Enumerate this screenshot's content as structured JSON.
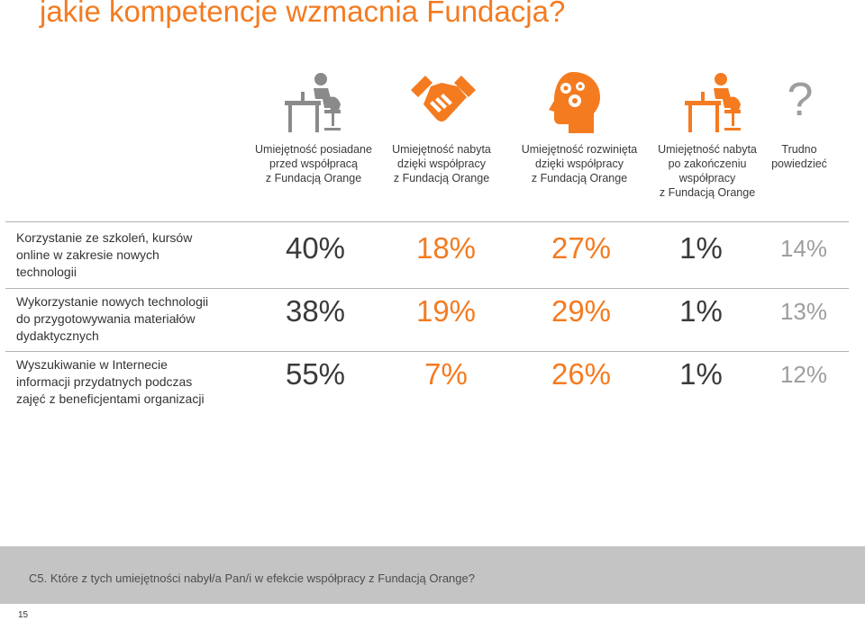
{
  "title": "jakie kompetencje wzmacnia Fundacja?",
  "colors": {
    "accent": "#f47b20",
    "gray": "#9e9e9e",
    "text": "#333333"
  },
  "columns": [
    {
      "icon": "person-at-desk-icon",
      "header": [
        "Umiejętność posiadane",
        "przed współpracą",
        "z Fundacją Orange"
      ],
      "color": "#3a3a3a"
    },
    {
      "icon": "handshake-icon",
      "header": [
        "Umiejętność nabyta",
        "dzięki współpracy",
        "z Fundacją Orange"
      ],
      "color": "#f47b20"
    },
    {
      "icon": "head-gears-icon",
      "header": [
        "Umiejętność rozwinięta",
        "dzięki współpracy",
        "z Fundacją Orange"
      ],
      "color": "#f47b20"
    },
    {
      "icon": "person-at-desk-icon",
      "header": [
        "Umiejętność nabyta",
        "po zakończeniu",
        "współpracy",
        "z Fundacją Orange"
      ],
      "color": "#3a3a3a"
    },
    {
      "icon": "question-mark-icon",
      "header": [
        "Trudno",
        "powiedzieć"
      ],
      "color": "#9e9e9e"
    }
  ],
  "rows": [
    {
      "label": [
        "Korzystanie ze szkoleń, kursów",
        "online  w zakresie nowych",
        "technologii"
      ],
      "values": [
        "40%",
        "18%",
        "27%",
        "1%",
        "14%"
      ]
    },
    {
      "label": [
        "Wykorzystanie nowych technologii",
        "do przygotowywania materiałów",
        "dydaktycznych"
      ],
      "values": [
        "38%",
        "19%",
        "29%",
        "1%",
        "13%"
      ]
    },
    {
      "label": [
        "Wyszukiwanie w Internecie",
        "informacji przydatnych podczas",
        "zajęć z beneficjentami organizacji"
      ],
      "values": [
        "55%",
        "7%",
        "26%",
        "1%",
        "12%"
      ]
    }
  ],
  "question": "C5. Które z tych umiejętności nabył/a Pan/i w efekcie współpracy z Fundacją Orange?",
  "page_number": "15"
}
